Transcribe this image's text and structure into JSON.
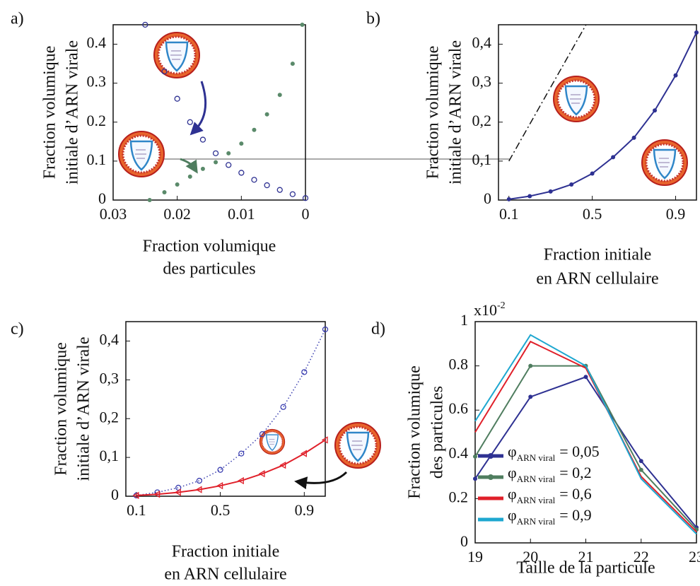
{
  "chart_data": [
    {
      "type": "line",
      "panel_label": "a)",
      "xlabel": [
        "Fraction volumique",
        "des particules"
      ],
      "ylabel": [
        "Fraction volumique",
        "initiale d’ARN virale"
      ],
      "xlim": [
        0.03,
        0
      ],
      "ylim": [
        0,
        0.45
      ],
      "xticks": [
        0.03,
        0.02,
        0.01,
        0
      ],
      "yticks": [
        0,
        0.1,
        0.2,
        0.3,
        0.4
      ],
      "series": [
        {
          "color": "#2e3192",
          "marker": "circle",
          "line": "none",
          "x": [
            0.025,
            0.022,
            0.02,
            0.018,
            0.016,
            0.014,
            0.012,
            0.01,
            0.008,
            0.006,
            0.004,
            0.002,
            0
          ],
          "values": [
            0.45,
            0.33,
            0.26,
            0.2,
            0.155,
            0.12,
            0.09,
            0.07,
            0.052,
            0.038,
            0.026,
            0.015,
            0.005
          ]
        },
        {
          "color": "#5a8a6a",
          "marker": "dot",
          "line": "none",
          "x": [
            0.0243,
            0.022,
            0.02,
            0.018,
            0.016,
            0.014,
            0.012,
            0.01,
            0.008,
            0.006,
            0.004,
            0.002,
            0.0005
          ],
          "values": [
            0,
            0.02,
            0.04,
            0.06,
            0.08,
            0.097,
            0.12,
            0.145,
            0.18,
            0.22,
            0.27,
            0.35,
            0.45
          ]
        }
      ]
    },
    {
      "type": "line",
      "panel_label": "b)",
      "xlabel": [
        "Fraction initiale",
        "en ARN cellulaire"
      ],
      "ylabel": [
        "Fraction volumique",
        "initiale d’ARN virale"
      ],
      "xlim": [
        0.05,
        1.0
      ],
      "ylim": [
        0,
        0.45
      ],
      "xticks": [
        0.1,
        0.5,
        0.9
      ],
      "yticks": [
        0,
        {
          "value": 0.1,
          "label": "0,1"
        },
        {
          "value": 0.2,
          "label": "0,2"
        },
        {
          "value": 0.3,
          "label": "0,3"
        },
        {
          "value": 0.4,
          "label": "0,4"
        }
      ],
      "x": [
        0.1,
        0.2,
        0.3,
        0.4,
        0.5,
        0.6,
        0.7,
        0.8,
        0.9,
        1.0
      ],
      "series": [
        {
          "color": "#2e3192",
          "marker": "dot",
          "line": "solid",
          "values": [
            0.002,
            0.01,
            0.022,
            0.04,
            0.068,
            0.11,
            0.16,
            0.23,
            0.32,
            0.43
          ]
        },
        {
          "color": "#111111",
          "marker": "none",
          "line": "dashdot",
          "x": [
            0.1,
            0.47
          ],
          "values": [
            0.1,
            0.45
          ]
        }
      ]
    },
    {
      "type": "line",
      "panel_label": "c)",
      "xlabel": [
        "Fraction initiale",
        "en ARN cellulaire"
      ],
      "ylabel": [
        "Fraction volumique",
        "initiale d’ARN virale"
      ],
      "xlim": [
        0.05,
        1.0
      ],
      "ylim": [
        0,
        0.45
      ],
      "xticks": [
        0.1,
        0.5,
        0.9
      ],
      "yticks": [
        0,
        {
          "value": 0.1,
          "label": "0,1"
        },
        {
          "value": 0.2,
          "label": "0,2"
        },
        {
          "value": 0.3,
          "label": "0,3"
        },
        {
          "value": 0.4,
          "label": "0,4"
        }
      ],
      "x": [
        0.1,
        0.2,
        0.3,
        0.4,
        0.5,
        0.6,
        0.7,
        0.8,
        0.9,
        1.0
      ],
      "series": [
        {
          "color": "#3b3fb0",
          "marker": "circle",
          "line": "dotted",
          "values": [
            0.002,
            0.01,
            0.022,
            0.04,
            0.068,
            0.11,
            0.16,
            0.23,
            0.32,
            0.43
          ]
        },
        {
          "color": "#e0202a",
          "marker": "triangle",
          "line": "solid",
          "values": [
            0.002,
            0.005,
            0.01,
            0.017,
            0.027,
            0.04,
            0.058,
            0.08,
            0.11,
            0.145
          ]
        }
      ]
    },
    {
      "type": "line",
      "panel_label": "d)",
      "xlabel": [
        "Taille de la particule"
      ],
      "ylabel": [
        "Fraction volumique",
        "des particules"
      ],
      "y_multiplier": "x10",
      "y_multiplier_exp": "-2",
      "xlim": [
        19,
        23
      ],
      "ylim": [
        0,
        1
      ],
      "xticks": [
        19,
        20,
        21,
        22,
        23
      ],
      "yticks": [
        0,
        0.2,
        0.4,
        0.6,
        0.8,
        1
      ],
      "legend_symbol": "φ",
      "legend_subscript": "ARN viral",
      "x": [
        19,
        20,
        21,
        22,
        23
      ],
      "series": [
        {
          "name": "= 0,05",
          "color": "#2e3192",
          "marker": "dot",
          "line": "solid",
          "values": [
            0.29,
            0.66,
            0.75,
            0.37,
            0.07
          ]
        },
        {
          "name": "= 0,2",
          "color": "#4f7d5f",
          "marker": "dot",
          "line": "solid",
          "values": [
            0.39,
            0.8,
            0.8,
            0.33,
            0.06
          ]
        },
        {
          "name": "= 0,6",
          "color": "#e0202a",
          "marker": "none",
          "line": "solid",
          "values": [
            0.5,
            0.91,
            0.79,
            0.3,
            0.05
          ]
        },
        {
          "name": "= 0,9",
          "color": "#1ea7d0",
          "marker": "none",
          "line": "solid",
          "values": [
            0.55,
            0.94,
            0.8,
            0.29,
            0.04
          ]
        }
      ]
    }
  ]
}
